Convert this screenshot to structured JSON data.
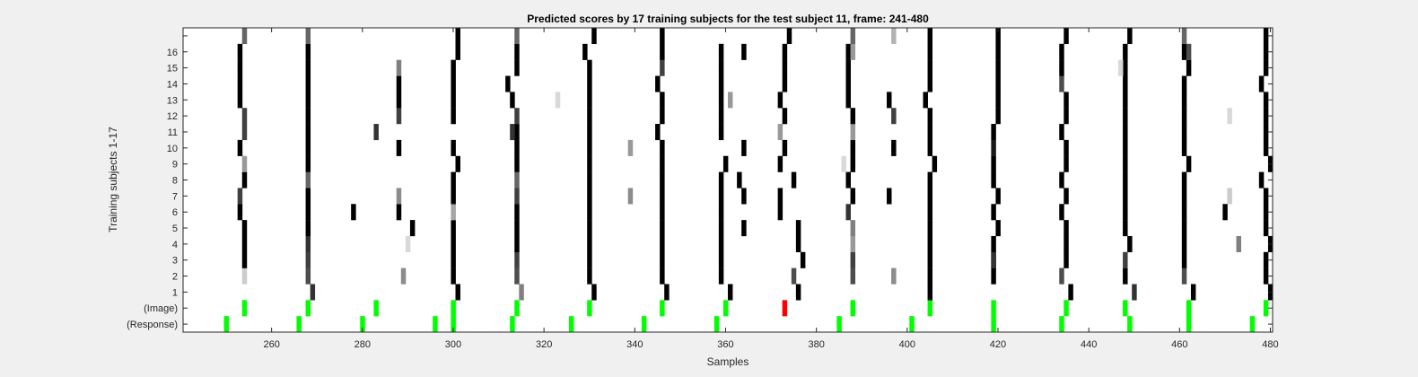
{
  "chart_data": {
    "type": "heatmap",
    "title": "Predicted scores by 17 training subjects for the test subject 11, frame: 241-480",
    "xlabel": "Samples",
    "ylabel": "Training subjects 1-17",
    "xlim": [
      240.5,
      480.5
    ],
    "xticks": [
      260,
      280,
      300,
      320,
      340,
      360,
      380,
      400,
      420,
      440,
      460,
      480
    ],
    "row_labels": [
      "(Response)",
      "(Image)",
      "1",
      "2",
      "3",
      "4",
      "5",
      "6",
      "7",
      "8",
      "9",
      "10",
      "11",
      "12",
      "13",
      "14",
      "15",
      "16",
      ""
    ],
    "colors": {
      "background": "#f0f0f0",
      "plot_background": "#ffffff",
      "marker": "#00ff00",
      "error_marker": "#ff0000"
    },
    "value_scale": "0 = white, 1 = black",
    "cells": [
      {
        "row": "(Response)",
        "x": [
          250,
          266,
          280,
          296,
          300,
          313,
          326,
          342,
          358,
          385,
          401,
          419,
          434,
          449,
          462,
          476
        ],
        "value": 1,
        "color": "marker"
      },
      {
        "row": "(Image)",
        "x": [
          254,
          268,
          283,
          300,
          314,
          330,
          346,
          360,
          388,
          405,
          419,
          435,
          448,
          462,
          479
        ],
        "value": 1,
        "color": "marker"
      },
      {
        "row": "(Image)",
        "x": [
          373
        ],
        "value": 1,
        "color": "error_marker"
      },
      {
        "row": "1",
        "x": [
          269
        ],
        "value": 0.8
      },
      {
        "row": "1",
        "x": [
          301
        ],
        "value": 1
      },
      {
        "row": "1",
        "x": [
          315
        ],
        "value": 0.5
      },
      {
        "row": "1",
        "x": [
          331
        ],
        "value": 1
      },
      {
        "row": "1",
        "x": [
          347
        ],
        "value": 1
      },
      {
        "row": "1",
        "x": [
          361
        ],
        "value": 1
      },
      {
        "row": "1",
        "x": [
          376
        ],
        "value": 1
      },
      {
        "row": "1",
        "x": [
          405
        ],
        "value": 1
      },
      {
        "row": "1",
        "x": [
          436
        ],
        "value": 1
      },
      {
        "row": "1",
        "x": [
          450
        ],
        "value": 0.8
      },
      {
        "row": "1",
        "x": [
          463
        ],
        "value": 1
      },
      {
        "row": "1",
        "x": [
          480
        ],
        "value": 1
      },
      {
        "row": "2",
        "x": [
          254
        ],
        "value": 0.2
      },
      {
        "row": "2",
        "x": [
          268,
          314,
          375,
          388,
          434,
          461
        ],
        "value": 0.7
      },
      {
        "row": "2",
        "x": [
          289,
          397
        ],
        "value": 0.45
      },
      {
        "row": "2",
        "x": [
          300,
          330,
          346,
          359,
          405,
          419,
          448,
          479
        ],
        "value": 1
      },
      {
        "row": "3",
        "x": [
          254,
          300,
          330,
          346,
          359,
          377,
          405,
          419,
          435,
          461,
          479
        ],
        "value": 1
      },
      {
        "row": "3",
        "x": [
          268,
          314,
          388,
          448
        ],
        "value": 0.75
      },
      {
        "row": "3",
        "x": [
          419
        ],
        "value": 0.8
      },
      {
        "row": "4",
        "x": [
          254,
          300,
          314,
          330,
          346,
          359,
          376,
          405,
          419,
          435,
          449,
          461,
          480
        ],
        "value": 1
      },
      {
        "row": "4",
        "x": [
          268
        ],
        "value": 0.8
      },
      {
        "row": "4",
        "x": [
          290
        ],
        "value": 0.15
      },
      {
        "row": "4",
        "x": [
          388
        ],
        "value": 0.4
      },
      {
        "row": "4",
        "x": [
          473
        ],
        "value": 0.5
      },
      {
        "row": "5",
        "x": [
          254,
          268,
          291,
          300,
          314,
          330,
          346,
          359,
          364,
          376,
          405,
          420,
          435,
          448,
          461,
          479
        ],
        "value": 1
      },
      {
        "row": "5",
        "x": [
          388
        ],
        "value": 0.5
      },
      {
        "row": "6",
        "x": [
          253,
          268,
          278,
          288,
          314,
          330,
          346,
          359,
          372,
          405,
          419,
          434,
          448,
          461,
          470,
          479
        ],
        "value": 1
      },
      {
        "row": "6",
        "x": [
          300
        ],
        "value": 0.35
      },
      {
        "row": "6",
        "x": [
          387
        ],
        "value": 0.8
      },
      {
        "row": "7",
        "x": [
          253,
          314
        ],
        "value": 0.75
      },
      {
        "row": "7",
        "x": [
          268,
          300,
          330,
          346,
          359,
          364,
          372,
          388,
          396,
          405,
          420,
          435,
          448,
          461,
          479
        ],
        "value": 1
      },
      {
        "row": "7",
        "x": [
          288,
          339
        ],
        "value": 0.45
      },
      {
        "row": "7",
        "x": [
          471
        ],
        "value": 0.2
      },
      {
        "row": "8",
        "x": [
          254,
          300,
          330,
          346,
          359,
          363,
          375,
          387,
          405,
          419,
          434,
          448,
          461,
          478
        ],
        "value": 1
      },
      {
        "row": "8",
        "x": [
          268,
          314
        ],
        "value": 0.6
      },
      {
        "row": "9",
        "x": [
          254
        ],
        "value": 0.4
      },
      {
        "row": "9",
        "x": [
          268,
          301,
          314,
          330,
          346,
          360,
          372,
          388,
          406,
          419,
          435,
          448,
          462,
          480
        ],
        "value": 1
      },
      {
        "row": "9",
        "x": [
          386
        ],
        "value": 0.15
      },
      {
        "row": "10",
        "x": [
          253,
          268,
          288,
          300,
          314,
          330,
          346,
          364,
          373,
          388,
          397,
          405,
          435,
          448,
          461,
          479
        ],
        "value": 1
      },
      {
        "row": "10",
        "x": [
          339
        ],
        "value": 0.4
      },
      {
        "row": "10",
        "x": [
          419
        ],
        "value": 0.9
      },
      {
        "row": "11",
        "x": [
          254
        ],
        "value": 0.75
      },
      {
        "row": "11",
        "x": [
          268,
          314,
          330,
          345,
          359,
          405,
          419,
          434,
          448,
          461,
          479
        ],
        "value": 1
      },
      {
        "row": "11",
        "x": [
          283,
          313
        ],
        "value": 0.8
      },
      {
        "row": "11",
        "x": [
          372,
          388
        ],
        "value": 0.4
      },
      {
        "row": "12",
        "x": [
          254,
          288,
          314,
          397
        ],
        "value": 0.75
      },
      {
        "row": "12",
        "x": [
          268,
          300,
          330,
          346,
          359,
          373,
          388,
          405,
          420,
          435,
          448,
          461,
          479
        ],
        "value": 1
      },
      {
        "row": "12",
        "x": [
          471
        ],
        "value": 0.15
      },
      {
        "row": "13",
        "x": [
          253,
          268,
          288,
          300,
          313,
          330,
          346,
          359,
          372,
          387,
          396,
          404,
          420,
          435,
          448,
          461,
          479
        ],
        "value": 1
      },
      {
        "row": "13",
        "x": [
          323
        ],
        "value": 0.15
      },
      {
        "row": "13",
        "x": [
          361
        ],
        "value": 0.4
      },
      {
        "row": "14",
        "x": [
          253,
          268,
          288,
          300,
          312,
          330,
          345,
          359,
          373,
          387,
          405,
          420,
          448,
          461,
          478
        ],
        "value": 1
      },
      {
        "row": "14",
        "x": [
          434
        ],
        "value": 0.7
      },
      {
        "row": "15",
        "x": [
          253,
          268,
          300,
          314,
          330,
          359,
          373,
          387,
          405,
          420,
          434,
          448,
          462,
          479
        ],
        "value": 1
      },
      {
        "row": "15",
        "x": [
          288
        ],
        "value": 0.5
      },
      {
        "row": "15",
        "x": [
          346
        ],
        "value": 0.75
      },
      {
        "row": "15",
        "x": [
          447
        ],
        "value": 0.15
      },
      {
        "row": "16",
        "x": [
          253,
          268,
          301,
          314,
          329,
          346,
          359,
          364,
          373,
          387,
          405,
          420,
          434,
          448,
          461,
          479
        ],
        "value": 1
      },
      {
        "row": "16",
        "x": [
          388
        ],
        "value": 0.4
      },
      {
        "row": "16",
        "x": [
          462
        ],
        "value": 0.7
      },
      {
        "row": "",
        "x": [
          254,
          268,
          314,
          388,
          461
        ],
        "value": 0.6
      },
      {
        "row": "",
        "x": [
          301,
          331,
          346,
          374,
          405,
          420,
          435,
          449,
          479
        ],
        "value": 1
      },
      {
        "row": "",
        "x": [
          397
        ],
        "value": 0.3
      }
    ]
  }
}
